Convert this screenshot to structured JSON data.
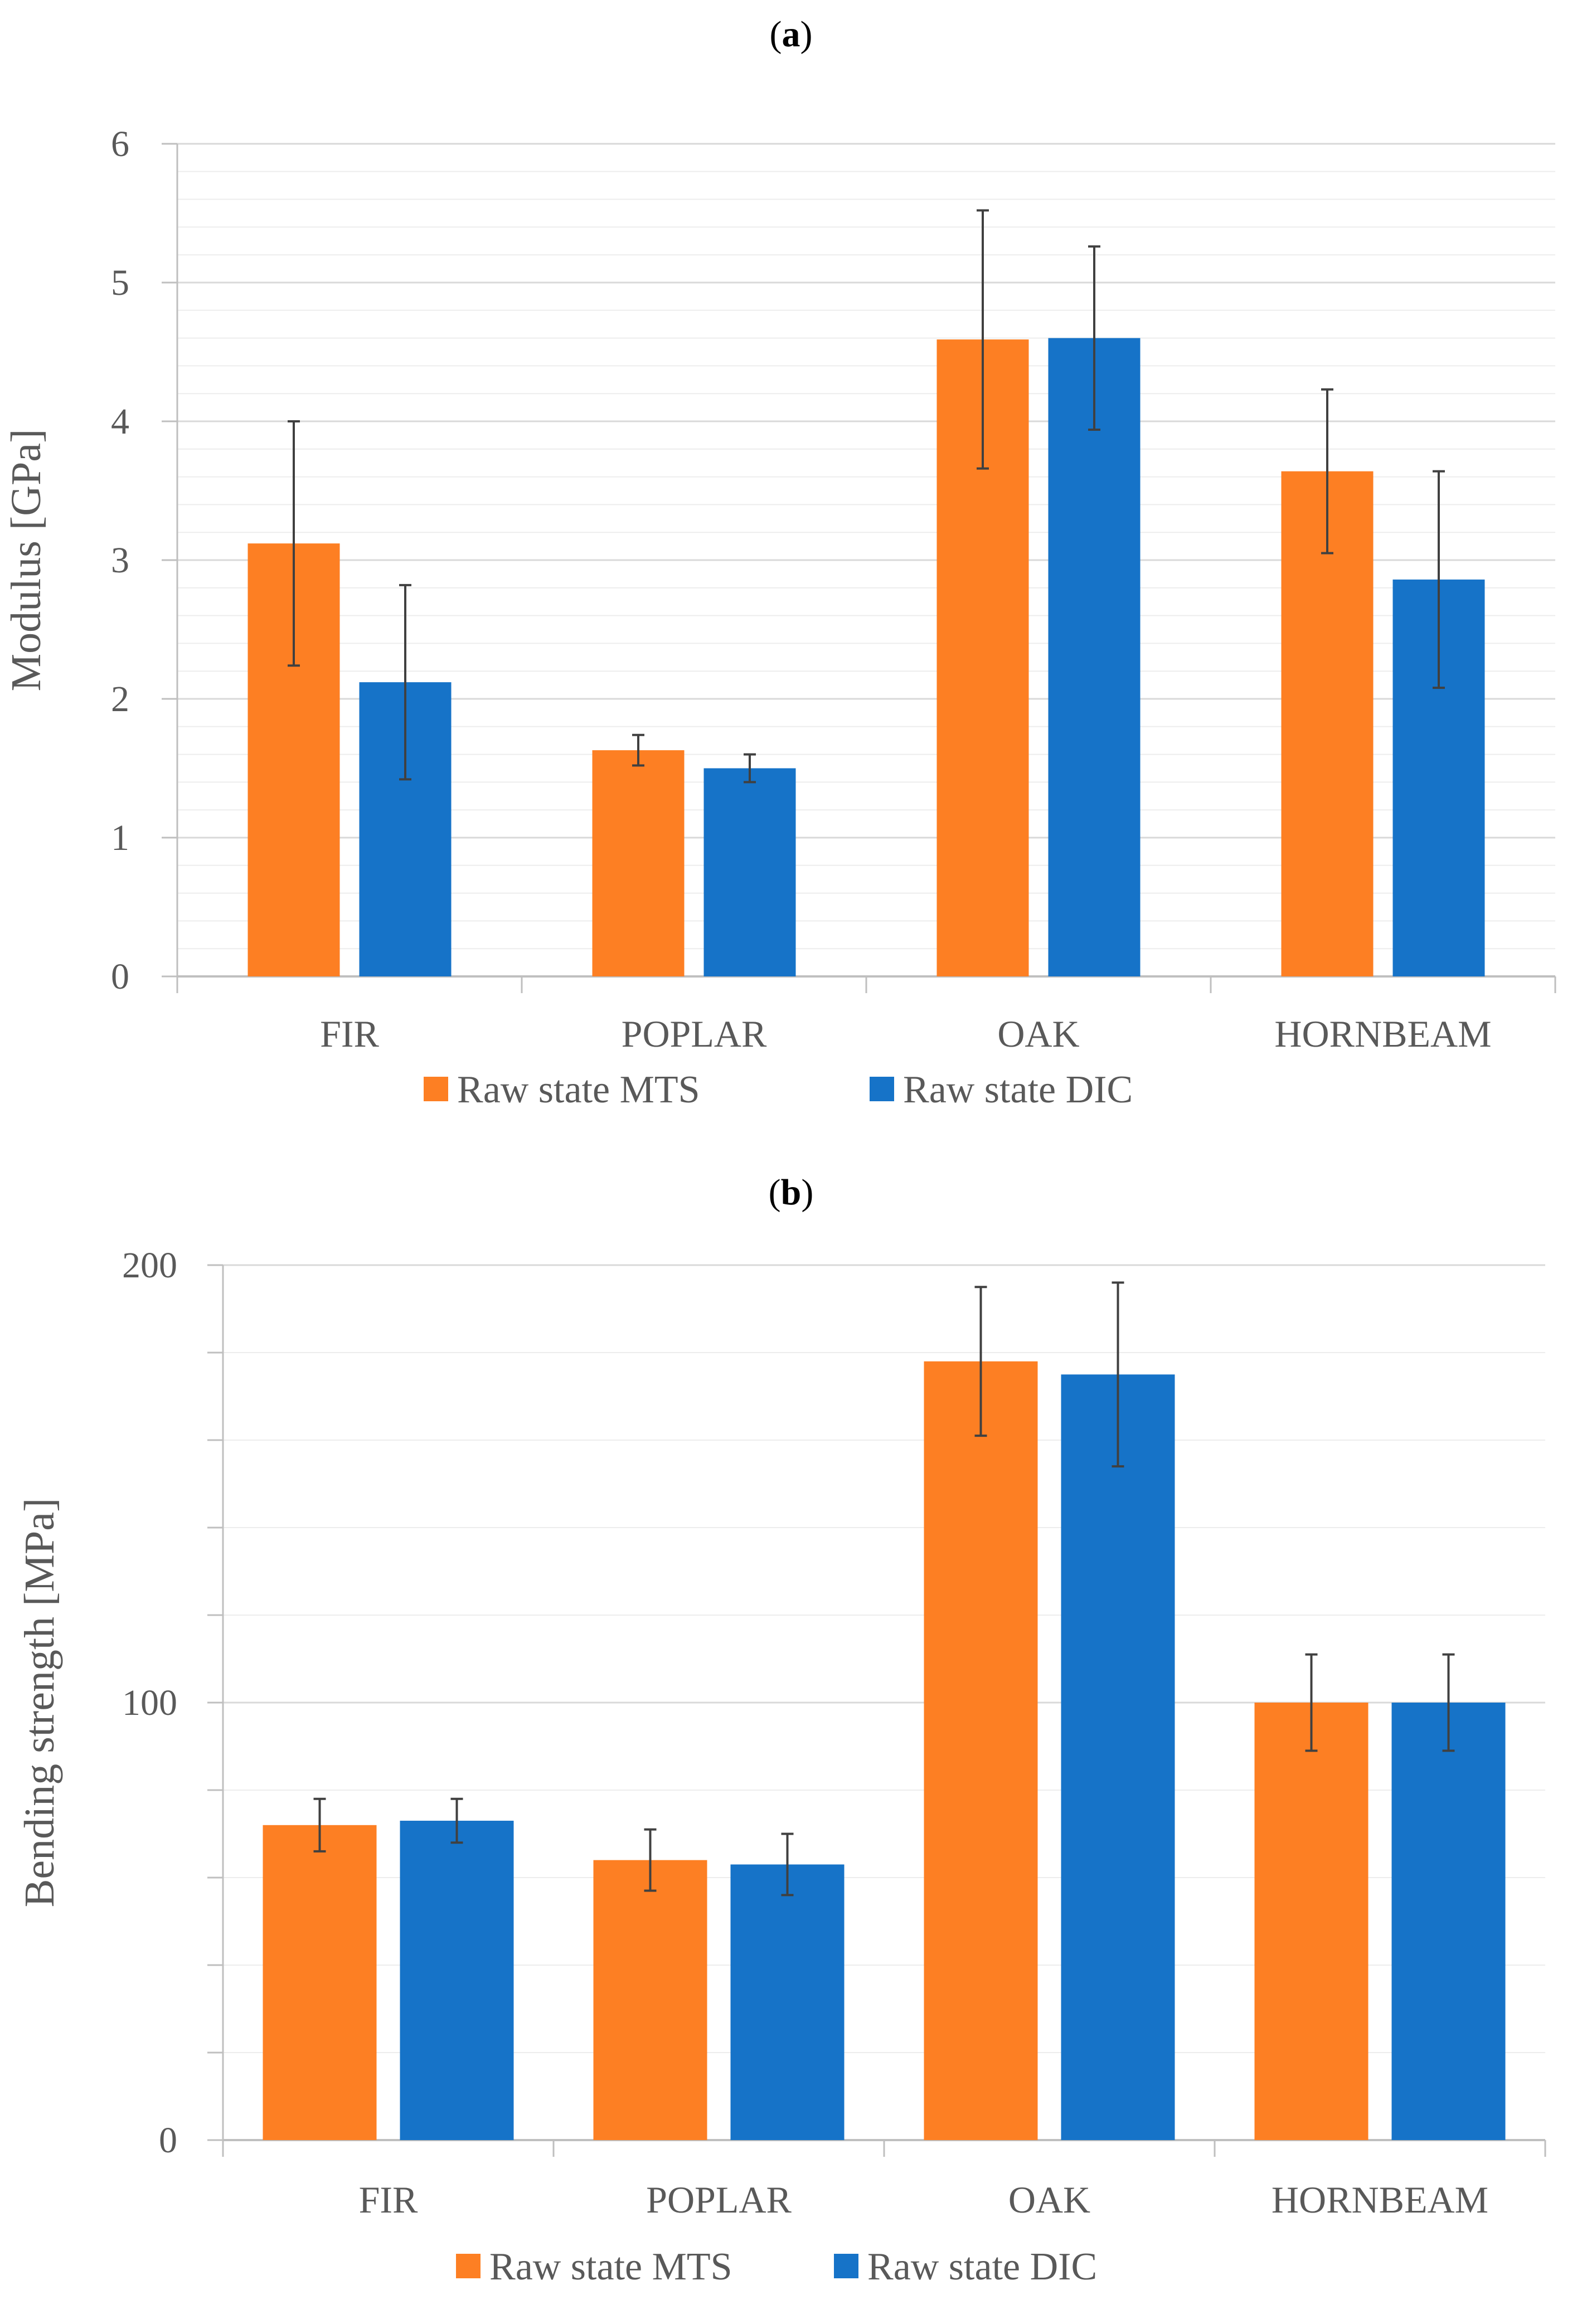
{
  "panels": [
    {
      "label_open": "(",
      "label_letter": "a",
      "label_close": ")"
    },
    {
      "label_open": "(",
      "label_letter": "b",
      "label_close": ")"
    }
  ],
  "colors": {
    "mts": "#FD7F23",
    "dic": "#1673C8",
    "grid_major": "#D9D9D9",
    "grid_minor": "#EDEDED",
    "axis": "#BFBFBF",
    "error": "#404040"
  },
  "chart_data": [
    {
      "type": "bar",
      "title": "",
      "categories": [
        "FIR",
        "POPLAR",
        "OAK",
        "HORNBEAM"
      ],
      "series": [
        {
          "name": "Raw state MTS",
          "values": [
            3.12,
            1.63,
            4.59,
            3.64
          ],
          "errors": [
            0.88,
            0.11,
            0.93,
            0.59
          ]
        },
        {
          "name": "Raw state DIC",
          "values": [
            2.12,
            1.5,
            4.6,
            2.86
          ],
          "errors": [
            0.7,
            0.1,
            0.66,
            0.78
          ]
        }
      ],
      "xlabel": "",
      "ylabel": "Modulus [GPa]",
      "ylim": [
        0,
        6
      ],
      "major_ticks": [
        0,
        1,
        2,
        3,
        4,
        5,
        6
      ],
      "minor_step": 0.2,
      "legend": "bottom"
    },
    {
      "type": "bar",
      "title": "",
      "categories": [
        "FIR",
        "POPLAR",
        "OAK",
        "HORNBEAM"
      ],
      "series": [
        {
          "name": "Raw state MTS",
          "values": [
            72,
            64,
            178,
            100
          ],
          "errors": [
            6,
            7,
            17,
            11
          ]
        },
        {
          "name": "Raw state DIC",
          "values": [
            73,
            63,
            175,
            100
          ],
          "errors": [
            5,
            7,
            21,
            11
          ]
        }
      ],
      "xlabel": "",
      "ylabel": "Bending strength [MPa]",
      "ylim": [
        0,
        200
      ],
      "major_ticks": [
        0,
        100,
        200
      ],
      "minor_step": 20,
      "legend": "bottom"
    }
  ]
}
